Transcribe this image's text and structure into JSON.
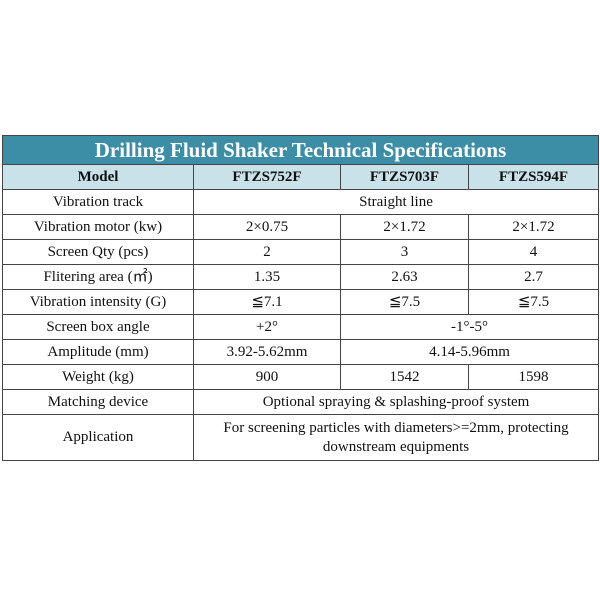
{
  "table": {
    "title": "Drilling Fluid Shaker Technical Specifications",
    "header": [
      "Model",
      "FTZS752F",
      "FTZS703F",
      "FTZS594F"
    ],
    "rows": [
      [
        "Vibration track",
        "Straight line"
      ],
      [
        "Vibration motor (kw)",
        "2×0.75",
        "2×1.72",
        "2×1.72"
      ],
      [
        "Screen Qty (pcs)",
        "2",
        "3",
        "4"
      ],
      [
        "Flitering area (㎡)",
        "1.35",
        "2.63",
        "2.7"
      ],
      [
        "Vibration intensity (G)",
        "≦7.1",
        "≦7.5",
        "≦7.5"
      ],
      [
        "Screen box angle",
        "+2°",
        "-1°-5°"
      ],
      [
        "Amplitude (mm)",
        "3.92-5.62mm",
        "4.14-5.96mm"
      ],
      [
        "Weight (kg)",
        "900",
        "1542",
        "1598"
      ],
      [
        "Matching device",
        "Optional spraying & splashing-proof system"
      ],
      [
        "Application",
        "For screening particles with diameters>=2mm, protecting downstream equipments"
      ]
    ]
  }
}
